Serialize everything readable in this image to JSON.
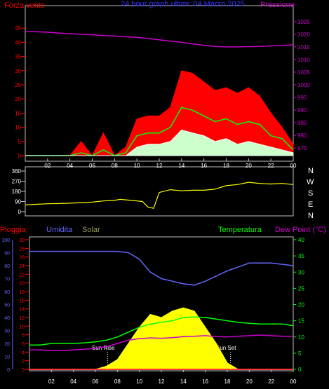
{
  "header": {
    "left_label": "Forza vento",
    "left_unit": "(kts)",
    "title": "24 hour graph ultimi: 04 Marzo 2025",
    "right_label": "Pressione"
  },
  "lower_header": {
    "rain": "Pioggia",
    "humidity": "Umidita",
    "solar": "Solar",
    "temperature": "Temperatura",
    "dewpoint": "Dew Point (°C)"
  },
  "annotations": {
    "sun_rise": "Sun Rise",
    "sun_set": "Sun Set"
  },
  "compass": [
    "N",
    "W",
    "S",
    "E",
    "N"
  ],
  "colors": {
    "wind_gust": "#ff0000",
    "wind_avg": "#00ff00",
    "wind_low": "#ffffff",
    "pressure": "#cc00cc",
    "direction": "#ffff00",
    "rain": "#ff3333",
    "humidity": "#6666ff",
    "solar": "#ffff00",
    "temperature": "#00ff00",
    "dewpoint": "#cc00cc",
    "axis_red": "#ff0000",
    "axis_blue": "#6666ff",
    "axis_green": "#00ff00",
    "axis_magenta": "#cc00cc"
  },
  "chart_data": [
    {
      "type": "line",
      "name": "wind_pressure",
      "x_hours": [
        0,
        1,
        2,
        3,
        4,
        5,
        6,
        7,
        8,
        9,
        10,
        11,
        12,
        13,
        14,
        15,
        16,
        17,
        18,
        19,
        20,
        21,
        22,
        23,
        24
      ],
      "x_ticks": [
        "02",
        "04",
        "06",
        "08",
        "10",
        "12",
        "14",
        "16",
        "18",
        "20",
        "22",
        "00"
      ],
      "y_left_ticks": [
        "0",
        "5",
        "10",
        "15",
        "20",
        "25",
        "30",
        "35",
        "40",
        "45"
      ],
      "y_left_range": [
        0,
        50
      ],
      "y_right_ticks": [
        "975",
        "980",
        "985",
        "990",
        "995",
        "1000",
        "1005",
        "1010",
        "1015",
        "1020",
        "1025"
      ],
      "y_right_range": [
        972,
        1028
      ],
      "series": [
        {
          "key": "gust",
          "values": [
            0,
            0,
            0,
            0,
            0,
            5,
            0,
            8,
            0,
            3,
            13,
            14,
            14,
            17,
            30,
            29,
            26,
            23,
            24,
            22,
            24,
            21,
            15,
            10,
            4
          ]
        },
        {
          "key": "avg",
          "values": [
            0,
            0,
            0,
            0,
            0,
            1,
            0,
            2,
            0,
            1,
            7,
            8,
            8,
            10,
            17,
            16,
            14,
            12,
            13,
            11,
            12,
            11,
            7,
            6,
            2
          ]
        },
        {
          "key": "low",
          "values": [
            0,
            0,
            0,
            0,
            0,
            0,
            0,
            0,
            0,
            0,
            3,
            4,
            4,
            5,
            9,
            8,
            7,
            5,
            6,
            4,
            5,
            4,
            3,
            2,
            1
          ]
        },
        {
          "key": "pressure",
          "values": [
            1021,
            1021,
            1020.8,
            1020.5,
            1020.2,
            1020,
            1019.8,
            1019.5,
            1019.3,
            1019,
            1018.8,
            1018.3,
            1017.8,
            1017.3,
            1016.8,
            1016.2,
            1015.6,
            1015.2,
            1015,
            1015,
            1015.1,
            1015.2,
            1015.4,
            1015.6,
            1015.8
          ]
        }
      ]
    },
    {
      "type": "line",
      "name": "wind_direction",
      "x_hours": [
        0,
        1,
        2,
        3,
        4,
        5,
        6,
        7,
        8,
        8.5,
        9,
        9.5,
        10,
        10.5,
        11,
        11.5,
        12,
        13,
        14,
        15,
        16,
        17,
        18,
        19,
        20,
        21,
        22,
        23,
        24
      ],
      "y_ticks": [
        "0",
        "90",
        "180",
        "270",
        "360"
      ],
      "y_range": [
        0,
        360
      ],
      "values": [
        60,
        65,
        70,
        72,
        75,
        80,
        85,
        95,
        100,
        110,
        105,
        100,
        95,
        90,
        40,
        30,
        170,
        195,
        185,
        190,
        190,
        200,
        230,
        240,
        260,
        250,
        245,
        250,
        240
      ]
    },
    {
      "type": "area",
      "name": "weather",
      "x_hours": [
        0,
        1,
        2,
        3,
        4,
        5,
        6,
        7,
        8,
        9,
        10,
        11,
        12,
        13,
        14,
        15,
        16,
        17,
        18,
        19,
        20,
        21,
        22,
        23,
        24
      ],
      "y_ticks_humidity": [
        "0",
        "10",
        "20",
        "30",
        "40",
        "50",
        "60",
        "70",
        "80",
        "90",
        "100"
      ],
      "y_ticks_rain": [
        "0",
        "2",
        "4",
        "6",
        "8",
        "10",
        "12",
        "14",
        "16",
        "18",
        "20",
        "22",
        "24",
        "26",
        "28",
        "30"
      ],
      "y_ticks_temp": [
        "0",
        "5",
        "10",
        "15",
        "20",
        "25",
        "30",
        "35",
        "40"
      ],
      "humidity_range": [
        0,
        100
      ],
      "temp_range": [
        0,
        40
      ],
      "series": [
        {
          "key": "rain",
          "values": [
            0,
            0,
            0,
            0,
            0,
            0,
            0,
            0,
            0,
            0,
            0,
            0,
            0,
            0,
            0,
            0,
            0,
            0,
            0,
            0,
            0,
            0,
            0,
            0,
            0
          ]
        },
        {
          "key": "humidity",
          "values": [
            91,
            91,
            91,
            91,
            91,
            91,
            91,
            91,
            91,
            90,
            85,
            75,
            70,
            68,
            66,
            65,
            68,
            72,
            76,
            79,
            82,
            82,
            82,
            81,
            80
          ]
        },
        {
          "key": "solar",
          "values": [
            0,
            0,
            0,
            0,
            0,
            0,
            0,
            1,
            3,
            8,
            13,
            17,
            16,
            18,
            19,
            18,
            13,
            8,
            2,
            0,
            0,
            0,
            0,
            0,
            0
          ]
        },
        {
          "key": "temperature",
          "values": [
            7.5,
            7.5,
            8,
            8,
            8,
            8.2,
            8.5,
            9,
            10,
            11.5,
            13,
            14,
            14.5,
            15,
            16,
            16.2,
            16,
            15.5,
            15,
            14.5,
            14.2,
            14,
            14,
            14,
            13.5
          ]
        },
        {
          "key": "dewpoint",
          "values": [
            6,
            6,
            5.8,
            5.8,
            6,
            6.2,
            6.5,
            7,
            8,
            9,
            9.5,
            9.7,
            9.6,
            9.8,
            10.1,
            10.2,
            10.4,
            10.1,
            10,
            10.2,
            10.4,
            10.6,
            10.4,
            10.2,
            10.2
          ]
        }
      ],
      "sun_rise_hour": 7.1,
      "sun_set_hour": 18.3
    }
  ]
}
